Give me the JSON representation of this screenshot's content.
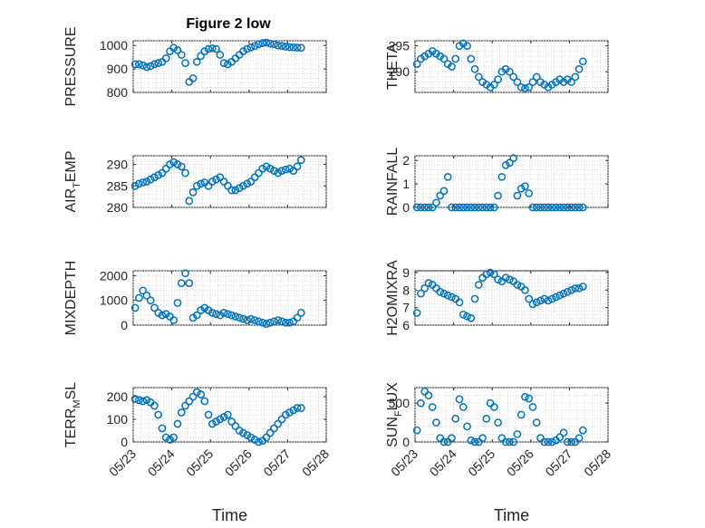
{
  "figure": {
    "title": "Figure 2 low"
  },
  "marker_color": "#0072bd",
  "x_ticks": [
    "05/23",
    "05/24",
    "05/25",
    "05/26",
    "05/27",
    "05/28"
  ],
  "chart_data": [
    {
      "type": "scatter",
      "ylabel": "PRESSURE",
      "ylabel_sub": "",
      "ylabel_post": "",
      "xlabel": "",
      "xlim": [
        0,
        5
      ],
      "ylim": [
        800,
        1020
      ],
      "yticks": [
        800,
        900,
        1000
      ],
      "grid": true,
      "minor_grid": true,
      "x": [
        0.05,
        0.15,
        0.25,
        0.35,
        0.45,
        0.55,
        0.65,
        0.75,
        0.85,
        0.95,
        1.05,
        1.15,
        1.25,
        1.35,
        1.45,
        1.55,
        1.65,
        1.75,
        1.85,
        1.95,
        2.05,
        2.15,
        2.25,
        2.35,
        2.45,
        2.55,
        2.65,
        2.75,
        2.85,
        2.95,
        3.05,
        3.15,
        3.25,
        3.35,
        3.45,
        3.55,
        3.65,
        3.75,
        3.85,
        3.95,
        4.05,
        4.15,
        4.25,
        4.35
      ],
      "y": [
        920,
        920,
        915,
        908,
        912,
        920,
        925,
        930,
        945,
        975,
        990,
        980,
        960,
        925,
        845,
        860,
        930,
        955,
        975,
        985,
        988,
        985,
        960,
        925,
        920,
        930,
        945,
        960,
        975,
        985,
        992,
        998,
        1005,
        1010,
        1012,
        1008,
        1005,
        1000,
        998,
        995,
        993,
        992,
        991,
        990
      ]
    },
    {
      "type": "scatter",
      "ylabel": "THETA",
      "ylabel_sub": "",
      "ylabel_post": "",
      "xlabel": "",
      "xlim": [
        0,
        5
      ],
      "ylim": [
        286,
        296
      ],
      "yticks": [
        290,
        295
      ],
      "grid": true,
      "minor_grid": true,
      "x": [
        0.05,
        0.15,
        0.25,
        0.35,
        0.45,
        0.55,
        0.65,
        0.75,
        0.85,
        0.95,
        1.05,
        1.15,
        1.25,
        1.35,
        1.45,
        1.55,
        1.65,
        1.75,
        1.85,
        1.95,
        2.05,
        2.15,
        2.25,
        2.35,
        2.45,
        2.55,
        2.65,
        2.75,
        2.85,
        2.95,
        3.05,
        3.15,
        3.25,
        3.35,
        3.45,
        3.55,
        3.65,
        3.75,
        3.85,
        3.95,
        4.05,
        4.15,
        4.25,
        4.35
      ],
      "y": [
        291.5,
        292.5,
        293,
        293.5,
        294,
        293.5,
        293,
        292.5,
        291.5,
        291,
        292.5,
        295,
        295.5,
        295,
        292.5,
        290.5,
        289,
        288,
        287.5,
        287,
        287.5,
        288.5,
        290,
        290.5,
        290,
        289,
        288,
        287,
        286.8,
        287,
        288,
        289,
        288,
        287.5,
        287,
        287.5,
        288,
        288.5,
        288,
        288.5,
        288,
        289,
        290.5,
        292
      ]
    },
    {
      "type": "scatter",
      "ylabel": "AIR",
      "ylabel_sub": "T",
      "ylabel_post": "EMP",
      "xlabel": "",
      "xlim": [
        0,
        5
      ],
      "ylim": [
        280,
        292
      ],
      "yticks": [
        280,
        285,
        290
      ],
      "grid": true,
      "minor_grid": true,
      "x": [
        0.05,
        0.15,
        0.25,
        0.35,
        0.45,
        0.55,
        0.65,
        0.75,
        0.85,
        0.95,
        1.05,
        1.15,
        1.25,
        1.35,
        1.45,
        1.55,
        1.65,
        1.75,
        1.85,
        1.95,
        2.05,
        2.15,
        2.25,
        2.35,
        2.45,
        2.55,
        2.65,
        2.75,
        2.85,
        2.95,
        3.05,
        3.15,
        3.25,
        3.35,
        3.45,
        3.55,
        3.65,
        3.75,
        3.85,
        3.95,
        4.05,
        4.15,
        4.25,
        4.35
      ],
      "y": [
        285,
        285.5,
        285.8,
        286,
        286.5,
        287,
        287.5,
        288,
        289,
        290,
        290.5,
        290,
        289.5,
        288,
        281.5,
        283.5,
        285,
        285.5,
        285.8,
        285,
        286,
        286.5,
        287,
        286,
        285,
        284,
        284,
        284.5,
        285,
        285.5,
        286,
        287,
        288,
        289,
        289.5,
        289,
        288.5,
        288,
        288.5,
        288.8,
        289,
        288.5,
        289.5,
        291
      ]
    },
    {
      "type": "scatter",
      "ylabel": "RAINFALL",
      "ylabel_sub": "",
      "ylabel_post": "",
      "xlabel": "",
      "xlim": [
        0,
        5
      ],
      "ylim": [
        0,
        2.2
      ],
      "yticks": [
        0,
        1,
        2
      ],
      "grid": true,
      "minor_grid": true,
      "x": [
        0.05,
        0.15,
        0.25,
        0.35,
        0.45,
        0.55,
        0.65,
        0.75,
        0.85,
        0.95,
        1.05,
        1.15,
        1.25,
        1.35,
        1.45,
        1.55,
        1.65,
        1.75,
        1.85,
        1.95,
        2.05,
        2.15,
        2.25,
        2.35,
        2.45,
        2.55,
        2.65,
        2.75,
        2.85,
        2.95,
        3.05,
        3.15,
        3.25,
        3.35,
        3.45,
        3.55,
        3.65,
        3.75,
        3.85,
        3.95,
        4.05,
        4.15,
        4.25,
        4.35
      ],
      "y": [
        0,
        0,
        0,
        0,
        0,
        0.2,
        0.5,
        0.7,
        1.3,
        0,
        0,
        0,
        0,
        0,
        0,
        0,
        0,
        0,
        0,
        0,
        0,
        0.5,
        1.3,
        1.8,
        1.9,
        2.1,
        0.5,
        0.8,
        0.9,
        0.6,
        0,
        0,
        0,
        0,
        0,
        0,
        0,
        0,
        0,
        0,
        0,
        0,
        0,
        0
      ]
    },
    {
      "type": "scatter",
      "ylabel": "MIXDEPTH",
      "ylabel_sub": "",
      "ylabel_post": "",
      "xlabel": "",
      "xlim": [
        0,
        5
      ],
      "ylim": [
        0,
        2200
      ],
      "yticks": [
        0,
        1000,
        2000
      ],
      "grid": true,
      "minor_grid": true,
      "x": [
        0.05,
        0.15,
        0.25,
        0.35,
        0.45,
        0.55,
        0.65,
        0.75,
        0.85,
        0.95,
        1.05,
        1.15,
        1.25,
        1.35,
        1.45,
        1.55,
        1.65,
        1.75,
        1.85,
        1.95,
        2.05,
        2.15,
        2.25,
        2.35,
        2.45,
        2.55,
        2.65,
        2.75,
        2.85,
        2.95,
        3.05,
        3.15,
        3.25,
        3.35,
        3.45,
        3.55,
        3.65,
        3.75,
        3.85,
        3.95,
        4.05,
        4.15,
        4.25,
        4.35
      ],
      "y": [
        700,
        1100,
        1400,
        1200,
        1000,
        700,
        500,
        400,
        450,
        350,
        200,
        900,
        1700,
        2100,
        1700,
        300,
        400,
        600,
        700,
        600,
        500,
        450,
        400,
        500,
        450,
        400,
        350,
        300,
        250,
        200,
        250,
        200,
        150,
        100,
        50,
        100,
        150,
        200,
        150,
        100,
        100,
        150,
        300,
        500
      ]
    },
    {
      "type": "scatter",
      "ylabel": "H2OMIXRA",
      "ylabel_sub": "",
      "ylabel_post": "",
      "xlabel": "",
      "xlim": [
        0,
        5
      ],
      "ylim": [
        6,
        9.1
      ],
      "yticks": [
        6,
        7,
        8,
        9
      ],
      "grid": true,
      "minor_grid": true,
      "x": [
        0.05,
        0.15,
        0.25,
        0.35,
        0.45,
        0.55,
        0.65,
        0.75,
        0.85,
        0.95,
        1.05,
        1.15,
        1.25,
        1.35,
        1.45,
        1.55,
        1.65,
        1.75,
        1.85,
        1.95,
        2.05,
        2.15,
        2.25,
        2.35,
        2.45,
        2.55,
        2.65,
        2.75,
        2.85,
        2.95,
        3.05,
        3.15,
        3.25,
        3.35,
        3.45,
        3.55,
        3.65,
        3.75,
        3.85,
        3.95,
        4.05,
        4.15,
        4.25,
        4.35
      ],
      "y": [
        6.7,
        7.8,
        8.1,
        8.4,
        8.3,
        8.1,
        7.9,
        7.8,
        7.7,
        7.6,
        7.5,
        7.3,
        6.6,
        6.5,
        6.4,
        7.5,
        8.3,
        8.7,
        8.9,
        9.0,
        8.9,
        8.6,
        8.5,
        8.7,
        8.6,
        8.5,
        8.3,
        8.2,
        8.0,
        7.5,
        7.2,
        7.3,
        7.4,
        7.5,
        7.4,
        7.5,
        7.6,
        7.7,
        7.8,
        7.9,
        8.0,
        8.1,
        8.1,
        8.2
      ]
    },
    {
      "type": "scatter",
      "ylabel": "TERR",
      "ylabel_sub": "M",
      "ylabel_post": "SL",
      "xlabel": "Time",
      "xlim": [
        0,
        5
      ],
      "ylim": [
        0,
        240
      ],
      "yticks": [
        0,
        100,
        200
      ],
      "grid": true,
      "minor_grid": true,
      "x": [
        0.05,
        0.15,
        0.25,
        0.35,
        0.45,
        0.55,
        0.65,
        0.75,
        0.85,
        0.95,
        1.05,
        1.15,
        1.25,
        1.35,
        1.45,
        1.55,
        1.65,
        1.75,
        1.85,
        1.95,
        2.05,
        2.15,
        2.25,
        2.35,
        2.45,
        2.55,
        2.65,
        2.75,
        2.85,
        2.95,
        3.05,
        3.15,
        3.25,
        3.35,
        3.45,
        3.55,
        3.65,
        3.75,
        3.85,
        3.95,
        4.05,
        4.15,
        4.25,
        4.35
      ],
      "y": [
        190,
        185,
        180,
        185,
        175,
        160,
        120,
        60,
        20,
        10,
        20,
        80,
        130,
        160,
        180,
        200,
        220,
        210,
        180,
        120,
        80,
        90,
        100,
        110,
        120,
        90,
        70,
        50,
        40,
        30,
        20,
        10,
        0,
        5,
        20,
        40,
        60,
        80,
        100,
        120,
        130,
        140,
        150,
        150
      ]
    },
    {
      "type": "scatter",
      "ylabel": "SUN",
      "ylabel_sub": "F",
      "ylabel_post": "LUX",
      "xlabel": "Time",
      "xlim": [
        0,
        5
      ],
      "ylim": [
        0,
        700
      ],
      "yticks": [
        0,
        500
      ],
      "grid": true,
      "minor_grid": true,
      "x": [
        0.05,
        0.15,
        0.25,
        0.35,
        0.45,
        0.55,
        0.65,
        0.75,
        0.85,
        0.95,
        1.05,
        1.15,
        1.25,
        1.35,
        1.45,
        1.55,
        1.65,
        1.75,
        1.85,
        1.95,
        2.05,
        2.15,
        2.25,
        2.35,
        2.45,
        2.55,
        2.65,
        2.75,
        2.85,
        2.95,
        3.05,
        3.15,
        3.25,
        3.35,
        3.45,
        3.55,
        3.65,
        3.75,
        3.85,
        3.95,
        4.05,
        4.15,
        4.25,
        4.35
      ],
      "y": [
        150,
        500,
        650,
        600,
        450,
        250,
        50,
        0,
        0,
        50,
        300,
        550,
        450,
        200,
        20,
        0,
        0,
        50,
        300,
        500,
        450,
        250,
        50,
        0,
        0,
        0,
        100,
        350,
        580,
        560,
        450,
        250,
        50,
        0,
        0,
        0,
        20,
        60,
        120,
        0,
        0,
        0,
        50,
        150
      ]
    }
  ]
}
